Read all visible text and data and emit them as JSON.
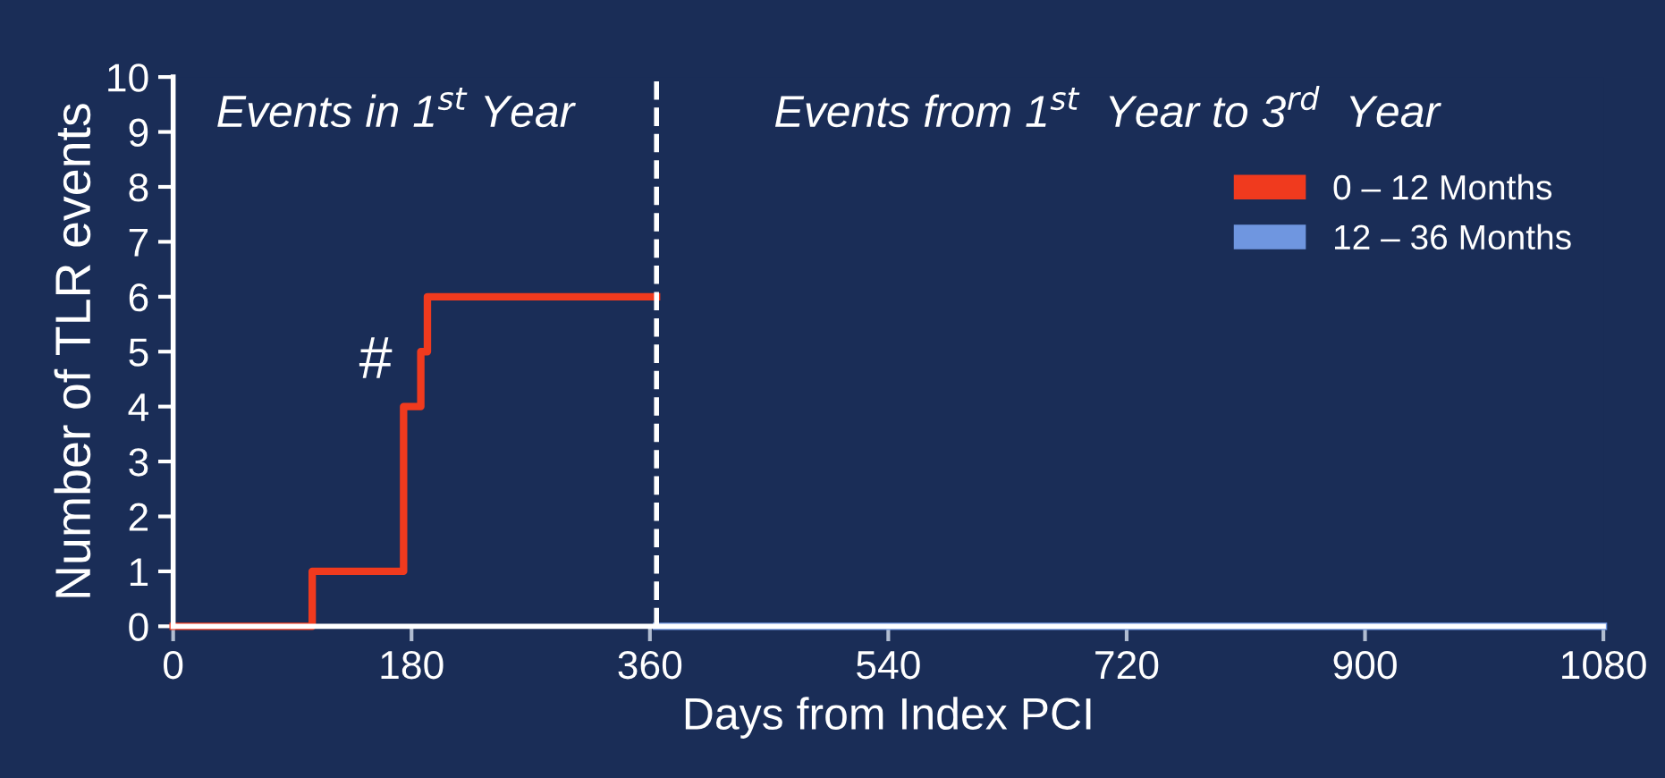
{
  "chart_data": {
    "type": "step",
    "xlabel": "Days from Index PCI",
    "ylabel": "Number of TLR events",
    "series": [
      {
        "name": "0 – 12 Months",
        "color": "#f03a1e",
        "x": [
          0,
          105,
          174,
          187,
          192,
          365
        ],
        "values": [
          0,
          1,
          4,
          5,
          6,
          6
        ]
      },
      {
        "name": "12 – 36 Months",
        "color": "#6f96e0",
        "x": [
          365,
          1080
        ],
        "values": [
          0,
          0
        ]
      }
    ],
    "xlim": [
      0,
      1080
    ],
    "xticks": [
      0,
      180,
      360,
      540,
      720,
      900,
      1080
    ],
    "ylim": [
      0,
      10
    ],
    "yticks": [
      0,
      1,
      2,
      3,
      4,
      5,
      6,
      7,
      8,
      9,
      10
    ],
    "ref_lines": [
      {
        "axis": "x",
        "value": 365,
        "color": "#ffffff",
        "line_style": "dashed"
      }
    ],
    "annotations": [
      "Events in 1$^{st}$ Year",
      "Events from 1$^{st}$  Year to 3$^{rd}$  Year",
      "#"
    ],
    "legend": "top right",
    "grid": false,
    "line_style": "solid",
    "marker": "none"
  }
}
